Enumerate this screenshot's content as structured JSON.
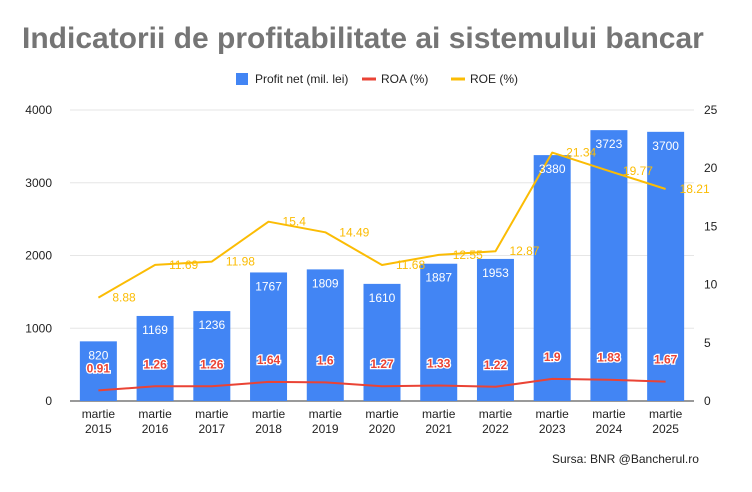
{
  "chart_data": {
    "type": "bar",
    "title": "Indicatorii de profitabilitate ai sistemului bancar",
    "source": "Sursa: BNR @Bancherul.ro",
    "legend_position": "top",
    "grid": true,
    "categories": [
      [
        "martie",
        "2015"
      ],
      [
        "martie",
        "2016"
      ],
      [
        "martie",
        "2017"
      ],
      [
        "martie",
        "2018"
      ],
      [
        "martie",
        "2019"
      ],
      [
        "martie",
        "2020"
      ],
      [
        "martie",
        "2021"
      ],
      [
        "martie",
        "2022"
      ],
      [
        "martie",
        "2023"
      ],
      [
        "martie",
        "2024"
      ],
      [
        "martie",
        "2025"
      ]
    ],
    "y_left": {
      "min": 0,
      "max": 4000,
      "ticks": [
        "0",
        "1000",
        "2000",
        "3000",
        "4000"
      ]
    },
    "y_right": {
      "min": 0,
      "max": 25,
      "ticks": [
        "0",
        "5",
        "10",
        "15",
        "20",
        "25"
      ]
    },
    "series": [
      {
        "name": "Profit net (mil. lei)",
        "type": "bar",
        "axis": "left",
        "color": "#4285f4",
        "values": [
          820,
          1169,
          1236,
          1767,
          1809,
          1610,
          1887,
          1953,
          3380,
          3723,
          3700
        ],
        "labels": [
          "820",
          "1169",
          "1236",
          "1767",
          "1809",
          "1610",
          "1887",
          "1953",
          "3380",
          "3723",
          "3700"
        ]
      },
      {
        "name": "ROA (%)",
        "type": "line",
        "axis": "right",
        "color": "#ea4335",
        "values": [
          0.91,
          1.26,
          1.26,
          1.64,
          1.6,
          1.27,
          1.33,
          1.22,
          1.9,
          1.83,
          1.67
        ],
        "labels": [
          "0.91",
          "1.26",
          "1.26",
          "1.64",
          "1.6",
          "1.27",
          "1.33",
          "1.22",
          "1.9",
          "1.83",
          "1.67"
        ]
      },
      {
        "name": "ROE (%)",
        "type": "line",
        "axis": "right",
        "color": "#fbbc04",
        "values": [
          8.88,
          11.69,
          11.98,
          15.4,
          14.49,
          11.68,
          12.55,
          12.87,
          21.34,
          19.77,
          18.21
        ],
        "labels": [
          "8.88",
          "11.69",
          "11.98",
          "15.4",
          "14.49",
          "11.68",
          "12.55",
          "12.87",
          "21.34",
          "19.77",
          "18.21"
        ]
      }
    ]
  }
}
